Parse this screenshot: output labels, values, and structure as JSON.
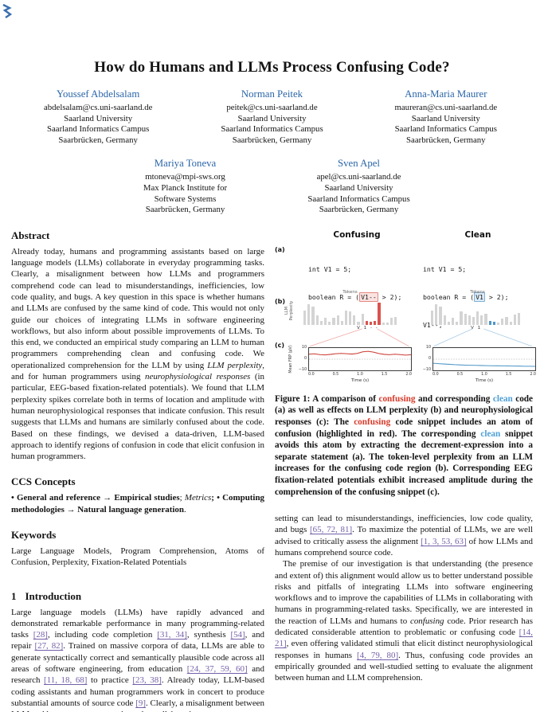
{
  "paper": {
    "title": "How do Humans and LLMs Process Confusing Code?",
    "authors_row1": [
      {
        "name": "Youssef Abdelsalam",
        "email": "abdelsalam@cs.uni-saarland.de",
        "l1": "Saarland University",
        "l2": "Saarland Informatics Campus",
        "l3": "Saarbrücken, Germany"
      },
      {
        "name": "Norman Peitek",
        "email": "peitek@cs.uni-saarland.de",
        "l1": "Saarland University",
        "l2": "Saarland Informatics Campus",
        "l3": "Saarbrücken, Germany"
      },
      {
        "name": "Anna-Maria Maurer",
        "email": "maureran@cs.uni-saarland.de",
        "l1": "Saarland University",
        "l2": "Saarland Informatics Campus",
        "l3": "Saarbrücken, Germany"
      }
    ],
    "authors_row2": [
      {
        "name": "Mariya Toneva",
        "email": "mtoneva@mpi-sws.org",
        "l1": "Max Planck Institute for",
        "l2": "Software Systems",
        "l3": "Saarbrücken, Germany"
      },
      {
        "name": "Sven Apel",
        "email": "apel@cs.uni-saarland.de",
        "l1": "Saarland University",
        "l2": "Saarland Informatics Campus",
        "l3": "Saarbrücken, Germany"
      }
    ],
    "sections": {
      "abstract": {
        "heading": "Abstract",
        "p1": "Already today, humans and programming assistants based on large language models (LLMs) collaborate in everyday programming tasks. Clearly, a misalignment between how LLMs and programmers comprehend code can lead to misunderstandings, inefficiencies, low code quality, and bugs. A key question in this space is whether humans and LLMs are confused by the same kind of code. This would not only guide our choices of integrating LLMs in software engineering workflows, but also inform about possible improvements of LLMs. To this end, we conducted an empirical study comparing an LLM to human programmers comprehending clean and confusing code. We operationalized comprehension for the LLM by using ",
        "i1": "LLM perplexity",
        "p2": ", and for human programmers using ",
        "i2": "neurophysiological responses",
        "p3": " (in particular, EEG-based fixation-related potentials). We found that LLM perplexity spikes correlate both in terms of location and amplitude with human neurophysiological responses that indicate confusion. This result suggests that LLMs and humans are similarly confused about the code. Based on these findings, we devised a data-driven, LLM-based approach to identify regions of confusion in code that elicit confusion in human programmers."
      },
      "ccs": {
        "heading": "CCS Concepts",
        "bullet1": "• ",
        "b1": "General and reference",
        "arrow1": " → ",
        "b2": "Empirical studies",
        "sep1": "; ",
        "i1": "Metrics",
        "sep2": "; • ",
        "b3": "Computing methodologies",
        "arrow2": " → ",
        "b4": "Natural language generation",
        "end": "."
      },
      "keywords": {
        "heading": "Keywords",
        "text": "Large Language Models, Program Comprehension, Atoms of Confusion, Perplexity, Fixation-Related Potentials"
      },
      "intro": {
        "heading_num": "1",
        "heading": "Introduction",
        "p1": "Large language models (LLMs) have rapidly advanced and demonstrated remarkable performance in many programming-related tasks [28], including code completion [31, 34], synthesis [54], and repair [27, 82]. Trained on massive corpora of data, LLMs are able to generate syntactically correct and semantically plausible code across all areas of software engineering, from education [24, 37, 59, 60] and research [11, 18, 68] to practice [23, 38]. Already today, LLM-based coding assistants and human programmers work in concert to produce substantial amounts of source code [9]. Clearly, a misalignment between LLM and human programmers in such a collaborative",
        "p2": "setting can lead to misunderstandings, inefficiencies, low code quality, and bugs [65, 72, 81]. To maximize the potential of LLMs, we are well advised to critically assess the alignment [1, 3, 53, 63] of how LLMs and humans comprehend source code.",
        "p3a": "The premise of our investigation is that understanding (the presence and extent of) this alignment would allow us to better understand possible risks and pitfalls of integrating LLMs into software engineering workflows and to improve the capabilities of LLMs in collaborating with humans in programming-related tasks. Specifically, we are interested in the reaction of LLMs and humans to ",
        "p3i": "confusing",
        "p3b": " code. Prior research has dedicated considerable attention to problematic or confusing code [14, 21], even offering validated stimuli that elicit distinct neurophysiological responses in humans [4, 79, 80]. Thus, confusing code provides an empirically grounded and well-studied setting to evaluate the alignment between human and LLM comprehension."
      }
    },
    "figure": {
      "col_confusing": "Confusing",
      "col_clean": "Clean",
      "label_a": "(a)",
      "label_b": "(b)",
      "label_c": "(c)",
      "code_confusing": {
        "line1": "int V1 = 5;",
        "line2_pre": "boolean R = (",
        "highlight": "V1--",
        "line2_post": " > 2);"
      },
      "code_clean": {
        "line1": "int V1 = 5;",
        "line2_pre": "boolean R = (",
        "highlight": "V1",
        "line2_post": " > 2);",
        "line3": "V1--;"
      },
      "charts": {
        "bar_title": "Tokens",
        "bar_ylabel": "LLM Perplexity",
        "confusing_tokens_label": "V 1 - -",
        "clean_tokens_label": "V 1",
        "bars_confusing": {
          "bar_color": "#d4d4d4",
          "highlight_color": "#d9534e",
          "highlight_indices": [
            15,
            16,
            17,
            18
          ],
          "values": [
            52,
            75,
            68,
            34,
            14,
            25,
            10,
            26,
            34,
            14,
            52,
            48,
            34,
            12,
            40,
            13,
            10,
            14,
            82,
            9,
            8,
            26,
            30
          ]
        },
        "bars_clean": {
          "bar_color": "#d4d4d4",
          "highlight_color": "#4f97c7",
          "highlight_indices": [
            14,
            15
          ],
          "values": [
            52,
            75,
            68,
            34,
            12,
            26,
            10,
            48,
            40,
            34,
            28,
            50,
            34,
            40,
            13,
            11,
            8,
            24,
            28,
            12,
            38,
            44
          ]
        },
        "frp_ylabel": "Mean FRP (µV)",
        "frp_yticks": [
          "10",
          "0",
          "−10"
        ],
        "xlabel": "Time (s)",
        "xticks": [
          "0.0",
          "0.5",
          "1.0",
          "1.5",
          "2.0"
        ],
        "frp_confusing": {
          "color": "#cc3b33",
          "ymin": -13,
          "ymax": 13,
          "values": [
            5.8,
            6.2,
            5.4,
            5.0,
            5.6,
            6.4,
            6.8,
            6.4,
            6.0,
            6.8,
            8.6,
            9.2,
            8.2,
            6.6,
            5.6,
            5.2,
            5.8,
            5.4,
            4.8,
            5.2
          ]
        },
        "frp_clean": {
          "color": "#4f97c7",
          "ymin": -13,
          "ymax": 13,
          "values": [
            -4.8,
            -5.2,
            -5.6,
            -6.0,
            -6.4,
            -6.7,
            -6.9,
            -7.1,
            -7.2,
            -7.4,
            -7.5,
            -7.6,
            -7.7,
            -7.8,
            -7.9,
            -8.0,
            -8.1,
            -8.2,
            -8.2,
            -8.3
          ]
        }
      },
      "caption": {
        "c1": "Figure 1: A comparison of ",
        "red1": "confusing",
        "c2": " and corresponding ",
        "blue1": "clean",
        "c3": " code (a) as well as effects on LLM perplexity (b) and neurophysiological responses (c): The ",
        "red2": "confusing",
        "c4": " code snippet includes an atom of confusion (highlighted in red). The corresponding ",
        "blue2": "clean",
        "c5": " snippet avoids this atom by extracting the decrement-expression into a separate statement (a). The token-level perplexity from an LLM increases for the confusing code region (b). Corresponding EEG fixation-related potentials exhibit increased amplitude during the comprehension of the confusing snippet (c)."
      }
    },
    "colors": {
      "author_name": "#2a65a8",
      "citation": "#7560a8",
      "accent_red": "#d9534e",
      "accent_blue": "#4f97c7",
      "caption_red": "#d63a2a",
      "caption_blue": "#4d9fd6"
    }
  }
}
